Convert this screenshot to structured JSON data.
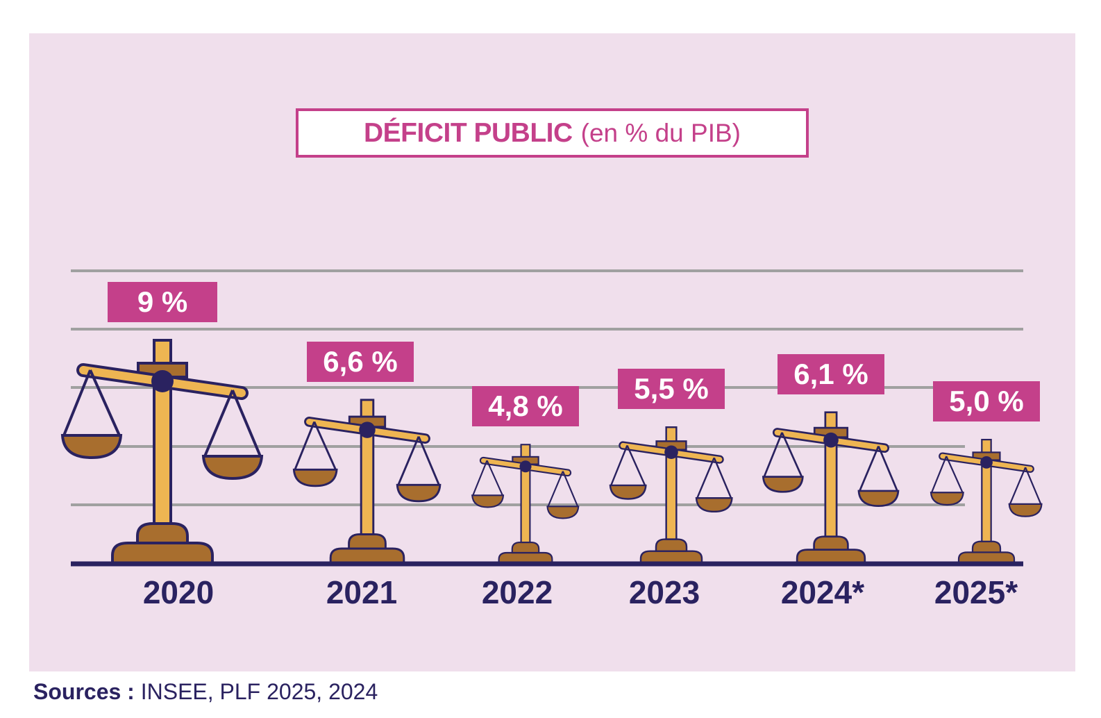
{
  "chart_data": {
    "type": "bar",
    "title": "DÉFICIT PUBLIC",
    "subtitle": "(en % du PIB)",
    "xlabel": "",
    "ylabel": "",
    "categories": [
      "2020",
      "2021",
      "2022",
      "2023",
      "2024*",
      "2025*"
    ],
    "values": [
      9,
      6.6,
      4.8,
      5.5,
      6.1,
      5.0
    ],
    "value_labels": [
      "9 %",
      "6,6 %",
      "4,8 %",
      "5,5 %",
      "6,1 %",
      "5,0 %"
    ],
    "ylim": [
      0,
      10
    ],
    "grid": true,
    "gridline_count": 5,
    "mark": "scale-of-justice pictogram sized by value",
    "legend": "none"
  },
  "colors": {
    "background": "#f0dfec",
    "accent": "#c4408a",
    "navy": "#2a2260",
    "gold": "#eeb552",
    "brown": "#a86e2e",
    "grid": "#a0a0a0"
  },
  "source": {
    "label": "Sources :",
    "text": " INSEE, PLF 2025, 2024"
  }
}
